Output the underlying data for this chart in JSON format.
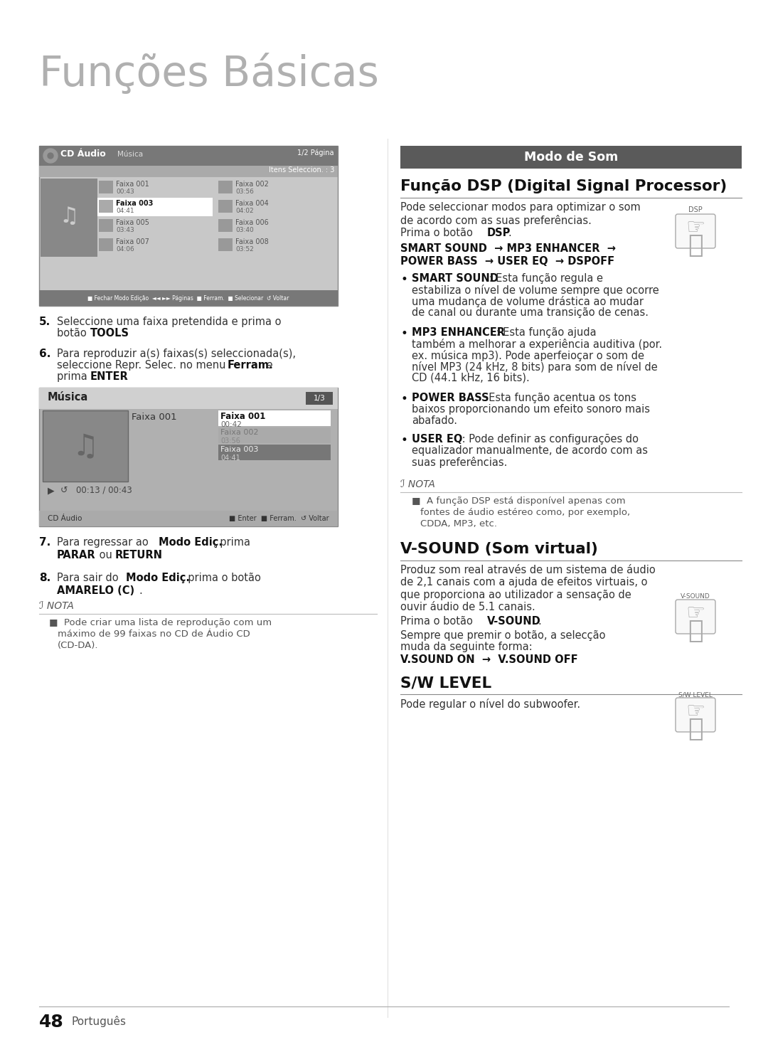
{
  "page_bg": "#ffffff",
  "title_main": "Funções Básicas",
  "title_color": "#aaaaaa",
  "section_header_bg": "#5a5a5a",
  "section_header_text": "Modo de Som",
  "dsp_title": "Função DSP (Digital Signal Processor)",
  "dsp_body1": "Pode seleccionar modos para optimizar o som\nde acordo com as suas preferências.",
  "dsp_flow1": "SMART SOUND  → MP3 ENHANCER  →",
  "dsp_flow2": "POWER BASS  → USER EQ  → DSPOFF",
  "vsound_title": "V-SOUND (Som virtual)",
  "vsound_body": "Produz som real através de um sistema de áudio\nde 2,1 canais com a ajuda de efeitos virtuais, o\nque proporciona ao utilizador a sensação de\nouvir áudio de 5.1 canais.",
  "swlevel_title": "S/W LEVEL",
  "swlevel_body": "Pode regular o nível do subwoofer.",
  "page_number": "48",
  "page_lang": "Português"
}
